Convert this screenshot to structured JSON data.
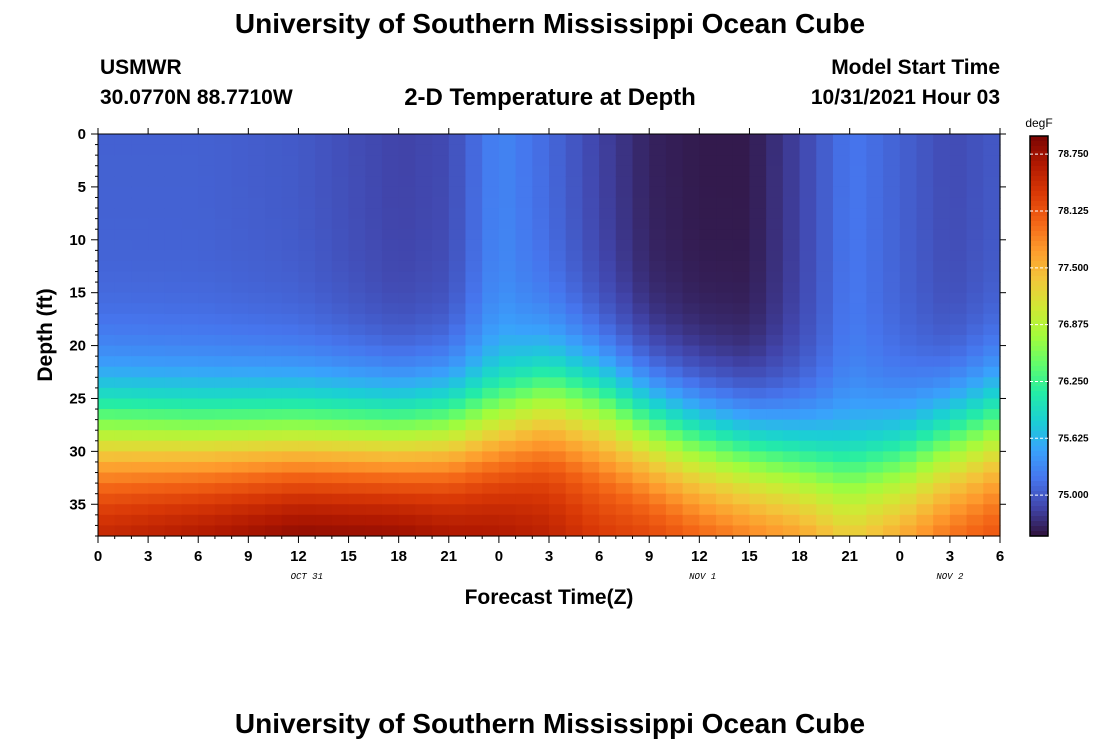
{
  "header": {
    "title": "University of Southern Mississippi Ocean Cube",
    "station": "USMWR",
    "coords": "30.0770N  88.7710W",
    "plot_title": "2-D Temperature at Depth",
    "model_start_label": "Model Start Time",
    "model_start_value": "10/31/2021 Hour 03"
  },
  "footer": {
    "title": "University of Southern Mississippi Ocean Cube"
  },
  "chart_data": {
    "type": "heatmap",
    "title": "2-D Temperature at Depth",
    "xlabel": "Forecast Time(Z)",
    "ylabel": "Depth (ft)",
    "x_range_hours": [
      0,
      54
    ],
    "x_tick_labels": [
      "0",
      "3",
      "6",
      "9",
      "12",
      "15",
      "18",
      "21",
      "0",
      "3",
      "6",
      "9",
      "12",
      "15",
      "18",
      "21",
      "0",
      "3",
      "6"
    ],
    "date_labels": [
      "OCT 31",
      "NOV 1",
      "NOV 2"
    ],
    "y_range": [
      0,
      38
    ],
    "y_inverted": true,
    "y_ticks": [
      0,
      5,
      10,
      15,
      20,
      25,
      30,
      35
    ],
    "colorbar": {
      "unit": "degF",
      "tick_labels": [
        "78.750",
        "78.125",
        "77.500",
        "76.875",
        "76.250",
        "75.625",
        "75.000"
      ],
      "min": 74.55,
      "max": 78.95,
      "colors": [
        "#30123b",
        "#4145ab",
        "#4675ed",
        "#39a2fc",
        "#1bcfd4",
        "#24eca6",
        "#61fc6c",
        "#a4fc3b",
        "#d1e834",
        "#f3c63a",
        "#fe9b2d",
        "#f36315",
        "#d93806",
        "#b11901",
        "#7a0403"
      ]
    },
    "field": {
      "description_keys": [
        "surface_layer",
        "thermocline",
        "bottom_layer"
      ],
      "x_columns": 54,
      "y_rows": 38,
      "surface_temp_by_hour": [
        [
          0,
          75.05
        ],
        [
          6,
          75.05
        ],
        [
          12,
          75.0
        ],
        [
          18,
          74.85
        ],
        [
          21,
          74.9
        ],
        [
          24,
          75.3
        ],
        [
          27,
          75.1
        ],
        [
          30,
          74.85
        ],
        [
          33,
          74.65
        ],
        [
          36,
          74.6
        ],
        [
          39,
          74.6
        ],
        [
          42,
          74.85
        ],
        [
          45,
          75.2
        ],
        [
          48,
          75.05
        ],
        [
          51,
          74.9
        ],
        [
          54,
          75.0
        ]
      ],
      "thermocline_depth_by_hour": [
        [
          0,
          28
        ],
        [
          6,
          28.5
        ],
        [
          12,
          28.5
        ],
        [
          18,
          28.5
        ],
        [
          21,
          28
        ],
        [
          24,
          27
        ],
        [
          27,
          25
        ],
        [
          30,
          25.5
        ],
        [
          33,
          27.5
        ],
        [
          36,
          29
        ],
        [
          39,
          30
        ],
        [
          42,
          31
        ],
        [
          45,
          32
        ],
        [
          48,
          31
        ],
        [
          51,
          29
        ],
        [
          54,
          27.5
        ]
      ],
      "bottom_temp_by_hour": [
        [
          0,
          78.5
        ],
        [
          6,
          78.7
        ],
        [
          12,
          78.9
        ],
        [
          18,
          78.85
        ],
        [
          21,
          78.7
        ],
        [
          24,
          78.6
        ],
        [
          27,
          78.4
        ],
        [
          30,
          78.2
        ],
        [
          33,
          78.2
        ],
        [
          36,
          78.1
        ],
        [
          39,
          78.0
        ],
        [
          42,
          77.9
        ],
        [
          45,
          77.6
        ],
        [
          48,
          77.8
        ],
        [
          51,
          78.0
        ],
        [
          54,
          78.1
        ]
      ]
    }
  }
}
